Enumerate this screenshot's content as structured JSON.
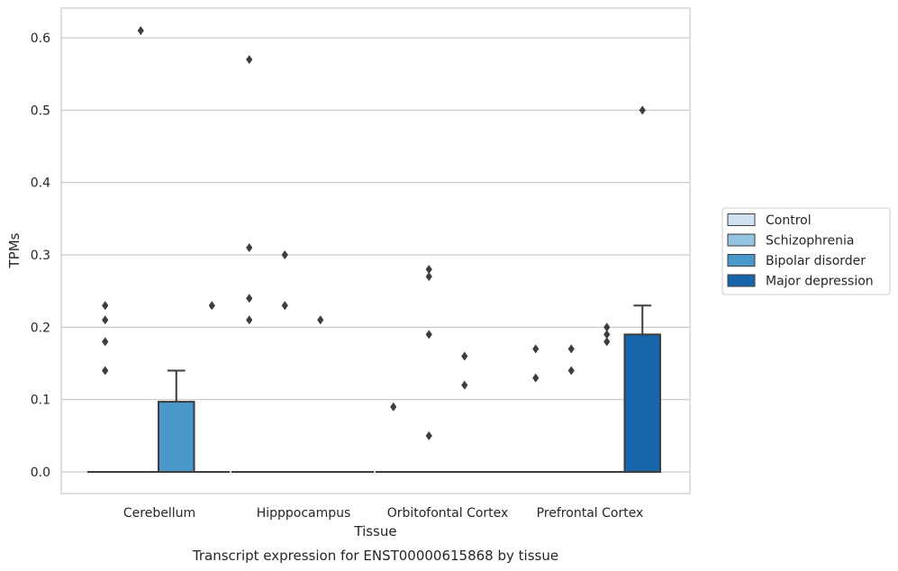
{
  "caption": "Transcript expression for ENST00000615868 by tissue",
  "chart_data": {
    "type": "boxplot",
    "xlabel": "Tissue",
    "ylabel": "TPMs",
    "ylim": [
      -0.03,
      0.64
    ],
    "yticks": [
      0.0,
      0.1,
      0.2,
      0.3,
      0.4,
      0.5,
      0.6
    ],
    "ytick_labels": [
      "0.0",
      "0.1",
      "0.2",
      "0.3",
      "0.4",
      "0.5",
      "0.6"
    ],
    "grid": "horizontal",
    "legend_position": "right",
    "categories": [
      "Cerebellum",
      "Hipppocampus",
      "Orbitofontal Cortex",
      "Prefrontal Cortex"
    ],
    "series": [
      {
        "name": "Control",
        "color": "#d0e1f2",
        "boxes": [
          {
            "q1": 0,
            "median": 0,
            "q3": 0,
            "whisker_low": 0,
            "whisker_high": 0,
            "outliers": [
              0.14,
              0.18,
              0.21,
              0.23
            ]
          },
          {
            "q1": 0,
            "median": 0,
            "q3": 0,
            "whisker_low": 0,
            "whisker_high": 0,
            "outliers": [
              0.21,
              0.24,
              0.31,
              0.57
            ]
          },
          {
            "q1": 0,
            "median": 0,
            "q3": 0,
            "whisker_low": 0,
            "whisker_high": 0,
            "outliers": [
              0.09
            ]
          },
          {
            "q1": 0,
            "median": 0,
            "q3": 0,
            "whisker_low": 0,
            "whisker_high": 0,
            "outliers": [
              0.13,
              0.17
            ]
          }
        ]
      },
      {
        "name": "Schizophrenia",
        "color": "#94c4df",
        "boxes": [
          {
            "q1": 0,
            "median": 0,
            "q3": 0,
            "whisker_low": 0,
            "whisker_high": 0,
            "outliers": [
              0.61
            ]
          },
          {
            "q1": 0,
            "median": 0,
            "q3": 0,
            "whisker_low": 0,
            "whisker_high": 0,
            "outliers": [
              0.23,
              0.3
            ]
          },
          {
            "q1": 0,
            "median": 0,
            "q3": 0,
            "whisker_low": 0,
            "whisker_high": 0,
            "outliers": [
              0.27,
              0.28,
              0.05,
              0.19
            ]
          },
          {
            "q1": 0,
            "median": 0,
            "q3": 0,
            "whisker_low": 0,
            "whisker_high": 0,
            "outliers": [
              0.14,
              0.17
            ]
          }
        ]
      },
      {
        "name": "Bipolar disorder",
        "color": "#4a98c9",
        "boxes": [
          {
            "q1": 0,
            "median": 0,
            "q3": 0.097,
            "whisker_low": 0,
            "whisker_high": 0.14,
            "outliers": []
          },
          {
            "q1": 0,
            "median": 0,
            "q3": 0,
            "whisker_low": 0,
            "whisker_high": 0,
            "outliers": [
              0.21
            ]
          },
          {
            "q1": 0,
            "median": 0,
            "q3": 0,
            "whisker_low": 0,
            "whisker_high": 0,
            "outliers": [
              0.16,
              0.12
            ]
          },
          {
            "q1": 0,
            "median": 0,
            "q3": 0,
            "whisker_low": 0,
            "whisker_high": 0,
            "outliers": [
              0.18,
              0.19,
              0.2
            ]
          }
        ]
      },
      {
        "name": "Major depression",
        "color": "#1764ab",
        "boxes": [
          {
            "q1": 0,
            "median": 0,
            "q3": 0,
            "whisker_low": 0,
            "whisker_high": 0,
            "outliers": [
              0.23
            ]
          },
          {
            "q1": 0,
            "median": 0,
            "q3": 0,
            "whisker_low": 0,
            "whisker_high": 0,
            "outliers": []
          },
          {
            "q1": 0,
            "median": 0,
            "q3": 0,
            "whisker_low": 0,
            "whisker_high": 0,
            "outliers": []
          },
          {
            "q1": 0,
            "median": 0,
            "q3": 0.19,
            "whisker_low": 0,
            "whisker_high": 0.23,
            "outliers": [
              0.5
            ]
          }
        ]
      }
    ]
  }
}
